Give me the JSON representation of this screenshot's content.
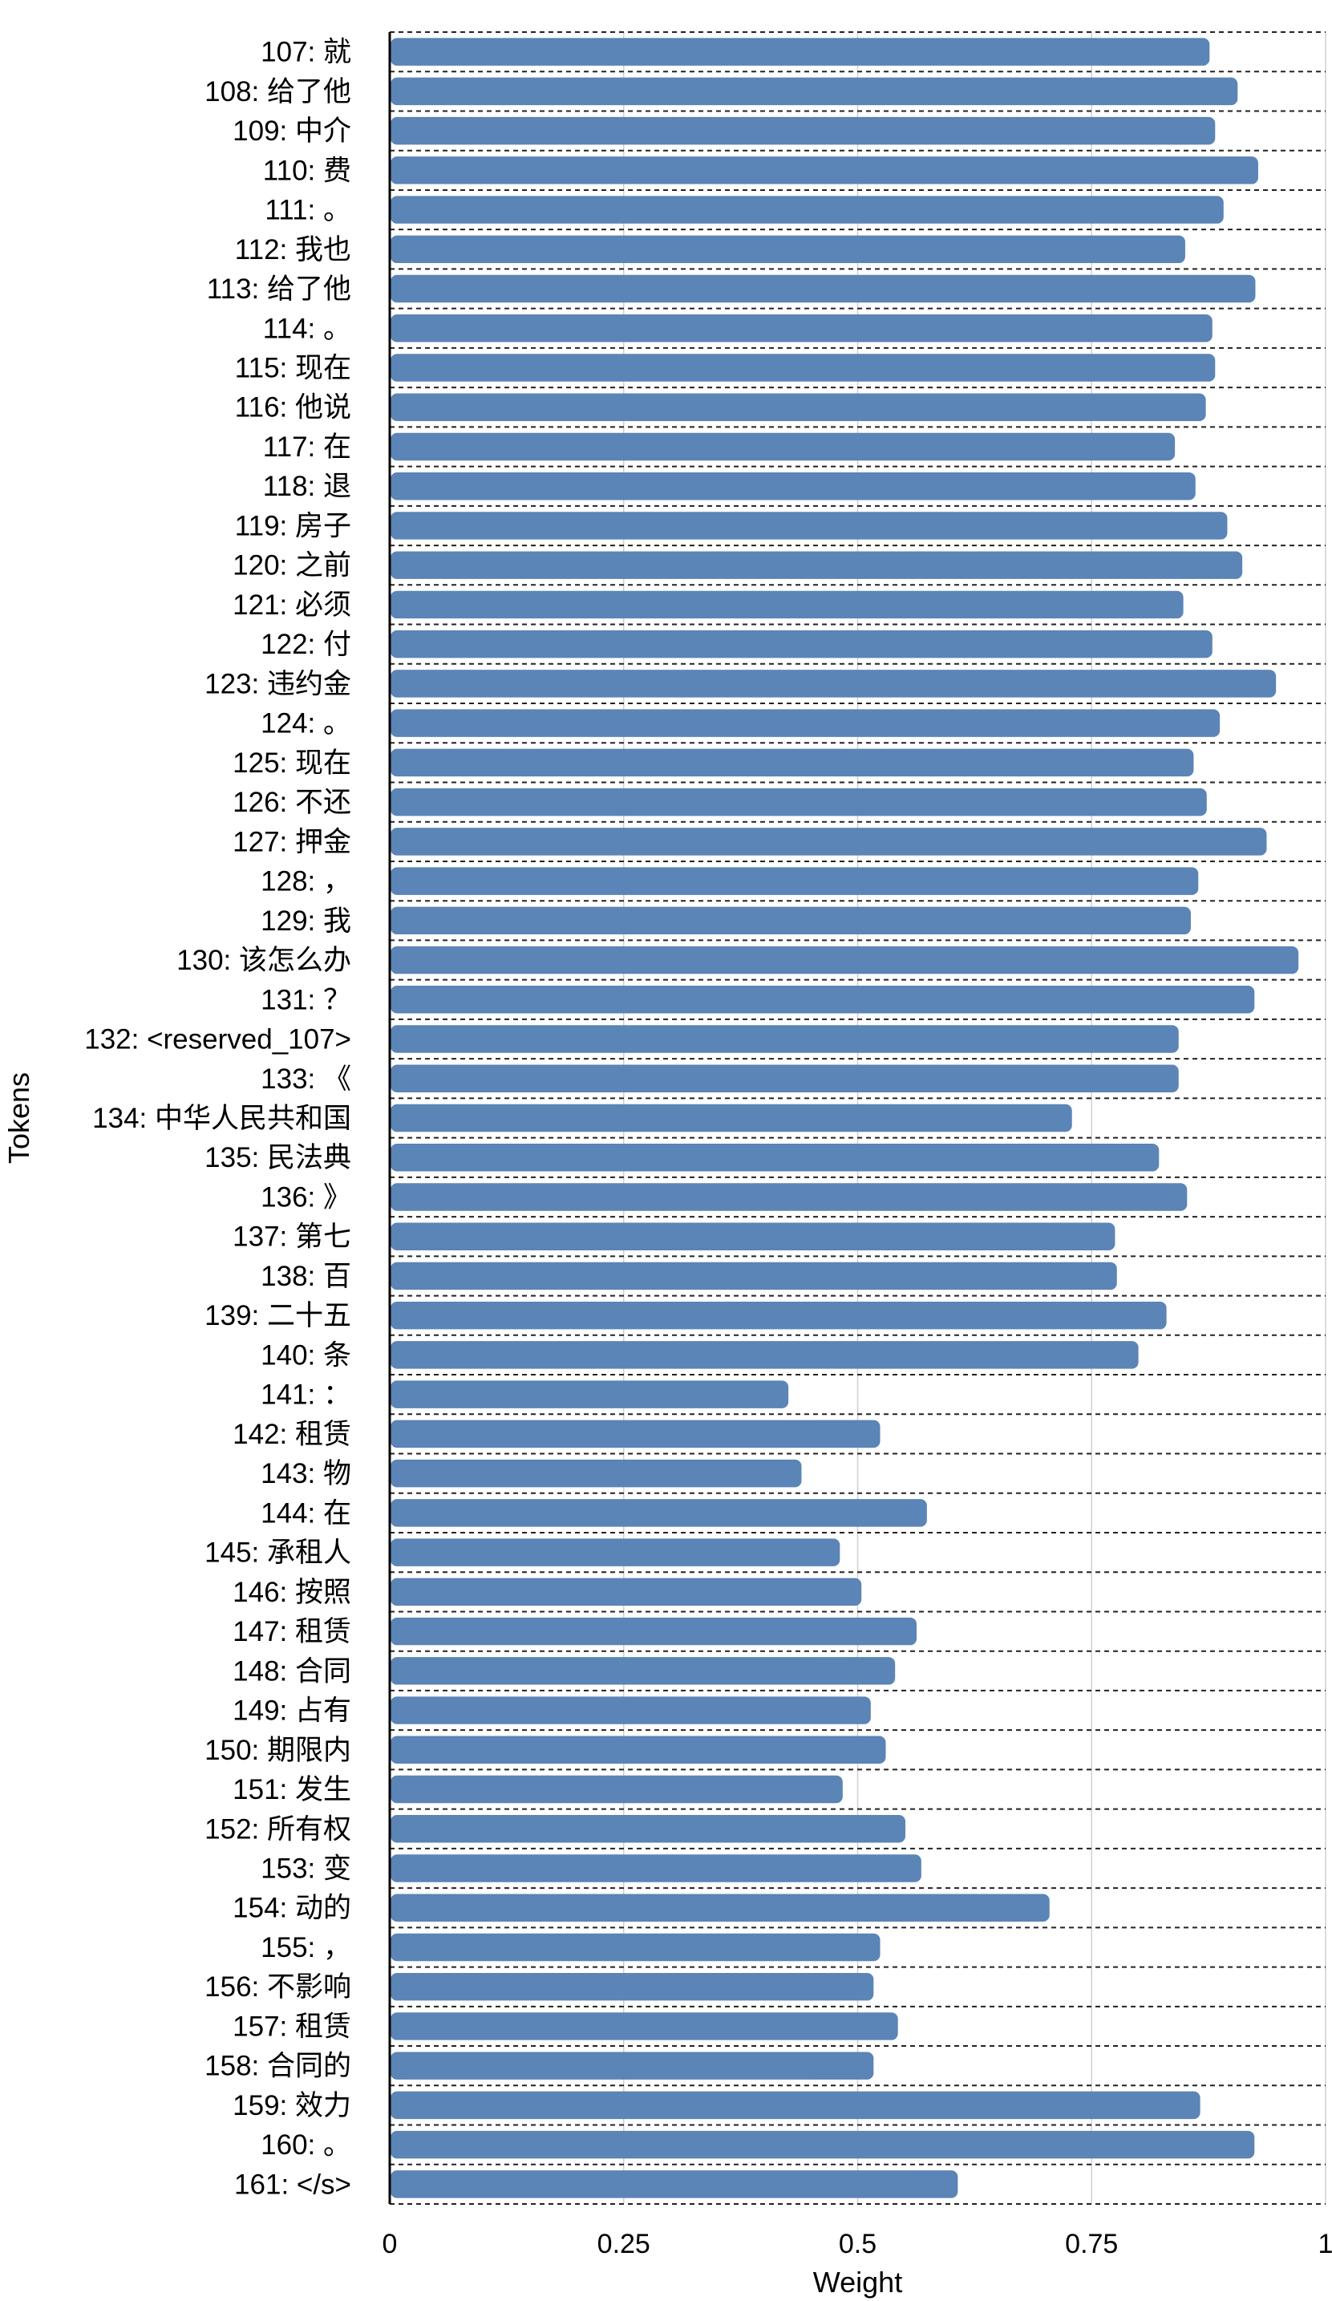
{
  "chart_data": {
    "type": "bar",
    "orientation": "horizontal",
    "xlabel": "Weight",
    "ylabel": "Tokens",
    "xlim": [
      0,
      1
    ],
    "xticks": [
      "0",
      "0.25",
      "0.5",
      "0.75",
      "1"
    ],
    "xtick_values": [
      0,
      0.25,
      0.5,
      0.75,
      1
    ],
    "grid": "vertical",
    "bar_color": "#5b84b7",
    "categories": [
      "107: 就",
      "108: 给了他",
      "109: 中介",
      "110: 费",
      "111: 。",
      "112: 我也",
      "113: 给了他",
      "114: 。",
      "115: 现在",
      "116: 他说",
      "117: 在",
      "118: 退",
      "119: 房子",
      "120: 之前",
      "121: 必须",
      "122: 付",
      "123: 违约金",
      "124: 。",
      "125: 现在",
      "126: 不还",
      "127: 押金",
      "128: ，",
      "129: 我",
      "130: 该怎么办",
      "131: ？",
      "132: <reserved_107>",
      "133: 《",
      "134: 中华人民共和国",
      "135: 民法典",
      "136: 》",
      "137: 第七",
      "138: 百",
      "139: 二十五",
      "140: 条",
      "141: ：",
      "142: 租赁",
      "143: 物",
      "144: 在",
      "145: 承租人",
      "146: 按照",
      "147: 租赁",
      "148: 合同",
      "149: 占有",
      "150: 期限内",
      "151: 发生",
      "152: 所有权",
      "153: 变",
      "154: 动的",
      "155: ，",
      "156: 不影响",
      "157: 租赁",
      "158: 合同的",
      "159: 效力",
      "160: 。",
      "161: </s>"
    ],
    "values": [
      0.876,
      0.906,
      0.882,
      0.928,
      0.891,
      0.85,
      0.925,
      0.879,
      0.882,
      0.872,
      0.839,
      0.861,
      0.895,
      0.911,
      0.848,
      0.879,
      0.947,
      0.887,
      0.859,
      0.873,
      0.937,
      0.864,
      0.856,
      0.971,
      0.924,
      0.843,
      0.843,
      0.729,
      0.822,
      0.852,
      0.775,
      0.777,
      0.83,
      0.8,
      0.426,
      0.524,
      0.44,
      0.574,
      0.481,
      0.504,
      0.563,
      0.54,
      0.514,
      0.53,
      0.484,
      0.551,
      0.568,
      0.705,
      0.524,
      0.517,
      0.543,
      0.517,
      0.866,
      0.924,
      0.607
    ]
  }
}
